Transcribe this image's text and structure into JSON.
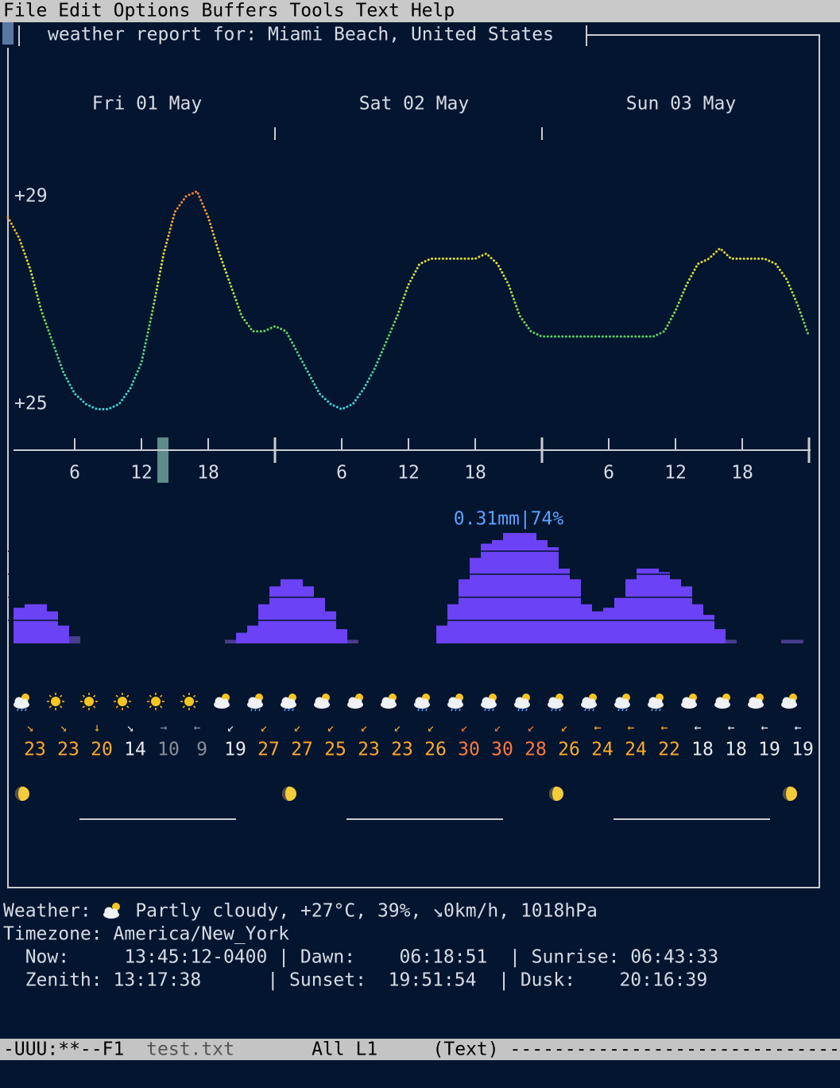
{
  "menu": [
    "File",
    "Edit",
    "Options",
    "Buffers",
    "Tools",
    "Text",
    "Help"
  ],
  "report_title": "weather report for: Miami Beach, United States",
  "days": [
    "Fri 01 May",
    "Sat 02 May",
    "Sun 03 May"
  ],
  "temperature": {
    "ylim": [
      25,
      29
    ],
    "yticks": [
      {
        "value": 29,
        "label": "+29"
      },
      {
        "value": 25,
        "label": "+25"
      }
    ],
    "values": [
      28.6,
      28.2,
      27.6,
      26.8,
      26.2,
      25.6,
      25.2,
      25.0,
      24.9,
      24.9,
      25.0,
      25.3,
      25.8,
      26.8,
      27.9,
      28.7,
      29.0,
      29.1,
      28.6,
      27.9,
      27.3,
      26.7,
      26.4,
      26.4,
      26.5,
      26.4,
      26.0,
      25.6,
      25.2,
      25.0,
      24.9,
      25.0,
      25.3,
      25.7,
      26.2,
      26.7,
      27.3,
      27.7,
      27.8,
      27.8,
      27.8,
      27.8,
      27.8,
      27.9,
      27.7,
      27.3,
      26.7,
      26.4,
      26.3,
      26.3,
      26.3,
      26.3,
      26.3,
      26.3,
      26.3,
      26.3,
      26.3,
      26.3,
      26.3,
      26.4,
      26.8,
      27.3,
      27.7,
      27.8,
      28.0,
      27.8,
      27.8,
      27.8,
      27.8,
      27.7,
      27.4,
      26.9,
      26.3
    ]
  },
  "hour_ticks": [
    6,
    12,
    18
  ],
  "precipitation": {
    "peak_label": "0.31mm|74%",
    "values": [
      0.1,
      0.11,
      0.11,
      0.09,
      0.05,
      0.02,
      0,
      0,
      0,
      0,
      0,
      0,
      0,
      0,
      0,
      0,
      0,
      0,
      0,
      0.01,
      0.03,
      0.05,
      0.11,
      0.16,
      0.18,
      0.18,
      0.16,
      0.13,
      0.09,
      0.04,
      0.01,
      0,
      0,
      0,
      0,
      0,
      0,
      0,
      0.05,
      0.11,
      0.18,
      0.24,
      0.28,
      0.29,
      0.31,
      0.31,
      0.31,
      0.29,
      0.27,
      0.21,
      0.18,
      0.11,
      0.09,
      0.1,
      0.13,
      0.18,
      0.21,
      0.21,
      0.2,
      0.18,
      0.16,
      0.11,
      0.08,
      0.04,
      0.01,
      0,
      0,
      0,
      0,
      0.01,
      0.01,
      0
    ]
  },
  "wind": {
    "directions": [
      "↘",
      "↘",
      "↓",
      "↘",
      "→",
      "←",
      "↙",
      "↙",
      "↙",
      "↙",
      "↙",
      "↙",
      "↙",
      "↙",
      "↙",
      "↙",
      "↙",
      "←",
      "←",
      "←",
      "←",
      "←",
      "←",
      "←"
    ],
    "speeds": [
      23,
      23,
      20,
      14,
      10,
      9,
      19,
      27,
      27,
      25,
      23,
      23,
      26,
      30,
      30,
      28,
      26,
      24,
      24,
      22,
      18,
      18,
      19,
      19
    ]
  },
  "current": {
    "label": "Weather:",
    "description": "Partly cloudy, +27°C, 39%, ↘0km/h, 1018hPa"
  },
  "info_lines": [
    "Timezone: America/New_York",
    "  Now:     13:45:12-0400 | Dawn:    06:18:51  | Sunrise: 06:43:33",
    "  Zenith: 13:17:38      | Sunset:  19:51:54  | Dusk:    20:16:39"
  ],
  "mode_line": {
    "status": "-UUU:**--F1",
    "buffer": "test.txt",
    "position": "All L1",
    "mode": "(Text)",
    "fill": "------------------------------"
  }
}
